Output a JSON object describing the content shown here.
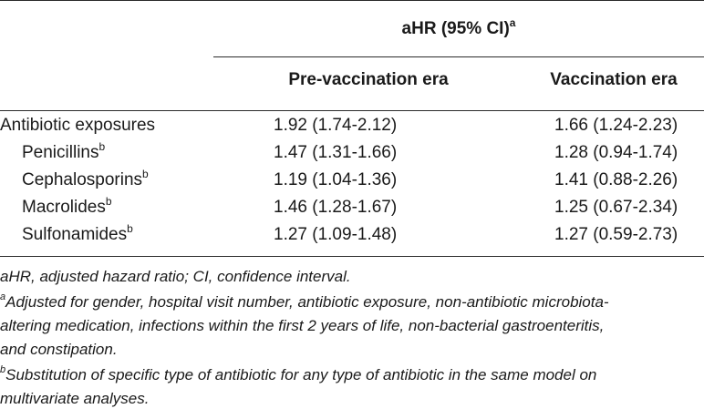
{
  "table": {
    "header": {
      "group_label": "aHR (95% CI)",
      "group_sup": "a",
      "col_pre": "Pre-vaccination era",
      "col_vac": "Vaccination era"
    },
    "rows": [
      {
        "label": "Antibiotic exposures",
        "sup": "",
        "pre": "1.92 (1.74-2.12)",
        "vac": "1.66 (1.24-2.23)"
      },
      {
        "label": "Penicillins",
        "sup": "b",
        "pre": "1.47 (1.31-1.66)",
        "vac": "1.28 (0.94-1.74)"
      },
      {
        "label": "Cephalosporins",
        "sup": "b",
        "pre": "1.19 (1.04-1.36)",
        "vac": "1.41 (0.88-2.26)"
      },
      {
        "label": "Macrolides",
        "sup": "b",
        "pre": "1.46 (1.28-1.67)",
        "vac": "1.25 (0.67-2.34)"
      },
      {
        "label": "Sulfonamides",
        "sup": "b",
        "pre": "1.27 (1.09-1.48)",
        "vac": "1.27 (0.59-2.73)"
      }
    ]
  },
  "footnotes": {
    "abbrev": "aHR, adjusted hazard ratio; CI, confidence interval.",
    "a_mark": "a",
    "a_line1": "Adjusted for gender, hospital visit number, antibiotic exposure, non-antibiotic microbiota-",
    "a_line2": "altering medication, infections within the first 2 years of life, non-bacterial gastroenteritis,",
    "a_line3": "and constipation.",
    "b_mark": "b",
    "b_line1": "Substitution of specific type of antibiotic for any type of antibiotic in the same model on",
    "b_line2": "multivariate analyses."
  }
}
